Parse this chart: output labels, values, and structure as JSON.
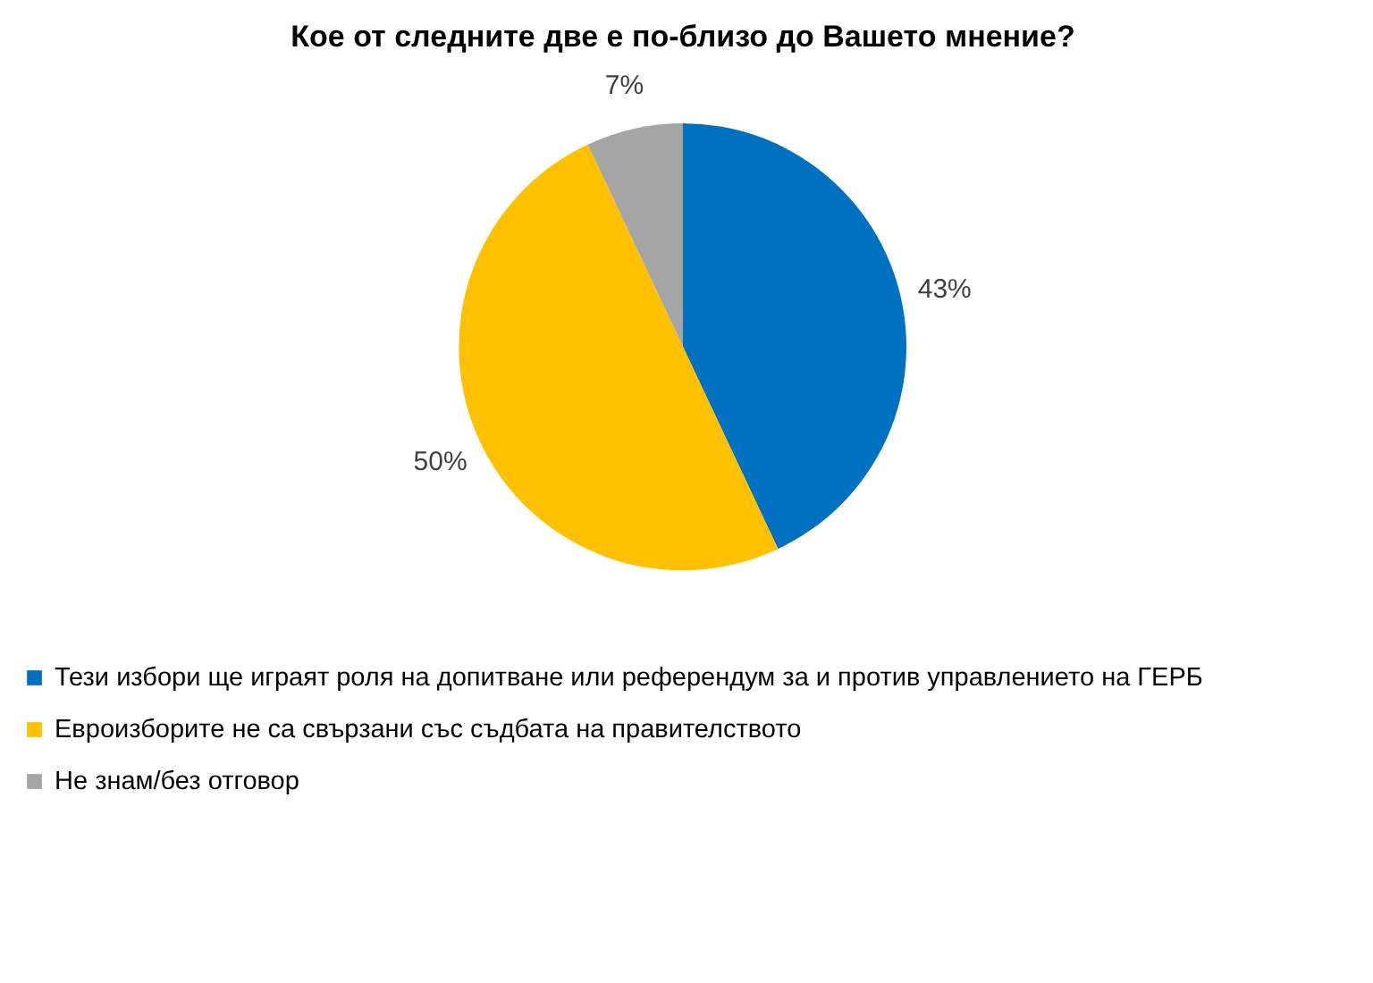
{
  "chart_data": {
    "type": "pie",
    "title": "Кое от следните две е по-близо до Вашето мнение?",
    "categories": [
      "Тези избори ще играят роля на допитване или референдум за и против управлението на ГЕРБ",
      "Евроизборите не са свързани със съдбата на правителството",
      "Не знам/без отговор"
    ],
    "values": [
      43,
      50,
      7
    ],
    "colors": [
      "#0070c0",
      "#ffc000",
      "#a5a5a5"
    ],
    "value_labels": [
      "43%",
      "50%",
      "7%"
    ],
    "legend": "bottom"
  }
}
